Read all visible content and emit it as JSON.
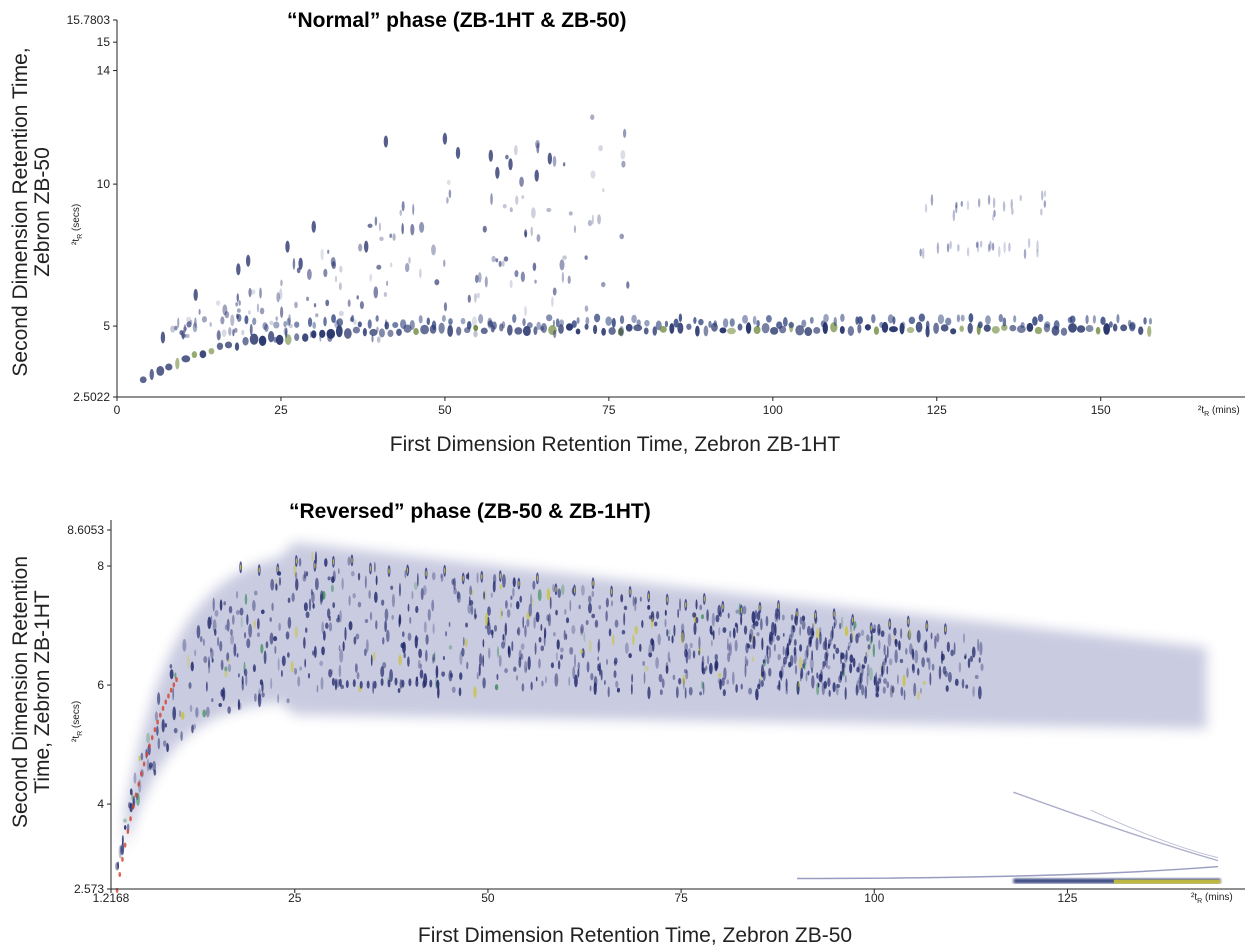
{
  "chart_data": [
    {
      "type": "heatmap",
      "title": "“Normal” phase (ZB-1HT & ZB-50)",
      "xlabel": "First Dimension Retention Time, Zebron ZB-1HT",
      "ylabel_lines": [
        "Second Dimension Retention Time,",
        "Zebron ZB-50"
      ],
      "x_unit_label": "²t",
      "x_unit_sub": "R",
      "x_unit_suffix": " (mins)",
      "y_unit_label": "²t",
      "y_unit_sub": "R",
      "y_unit_suffix": " (secs)",
      "xlim": [
        0,
        172
      ],
      "ylim": [
        2.5022,
        15.7803
      ],
      "x_ticks": [
        0,
        25,
        50,
        75,
        100,
        125,
        150
      ],
      "y_ticks": [
        2.5022,
        5,
        10,
        14,
        15,
        15.7803
      ],
      "y_tick_labels": [
        "2.5022",
        "5",
        "10",
        "14",
        "15",
        "15.7803"
      ],
      "colors": {
        "peak": "#2a3d7a",
        "peak_hot": "#6b8f3a",
        "axis": "#222222"
      },
      "grid": false
    },
    {
      "type": "heatmap",
      "title": "“Reversed” phase (ZB-50 & ZB-1HT)",
      "xlabel": "First Dimension Retention Time, Zebron ZB-50",
      "ylabel_lines": [
        "Second Dimension Retention",
        "Time, Zebron ZB-1HT"
      ],
      "x_unit_label": "²t",
      "x_unit_sub": "R",
      "x_unit_suffix": " (mins)",
      "y_unit_label": "²t",
      "y_unit_sub": "R",
      "y_unit_suffix": " (secs)",
      "xlim": [
        1.2168,
        145
      ],
      "ylim": [
        2.573,
        8.6053
      ],
      "x_ticks": [
        1.2168,
        25,
        50,
        75,
        100,
        125
      ],
      "x_tick_labels": [
        "1.2168",
        "25",
        "50",
        "75",
        "100",
        "125"
      ],
      "y_ticks": [
        2.573,
        4,
        6,
        8,
        8.6053
      ],
      "y_tick_labels": [
        "2.573",
        "4",
        "6",
        "8",
        "8.6053"
      ],
      "colors": {
        "peak": "#1e2a6e",
        "haze": "#3a3f8c",
        "hot": "#c8c23a",
        "red": "#d33a2a"
      },
      "grid": false
    }
  ]
}
